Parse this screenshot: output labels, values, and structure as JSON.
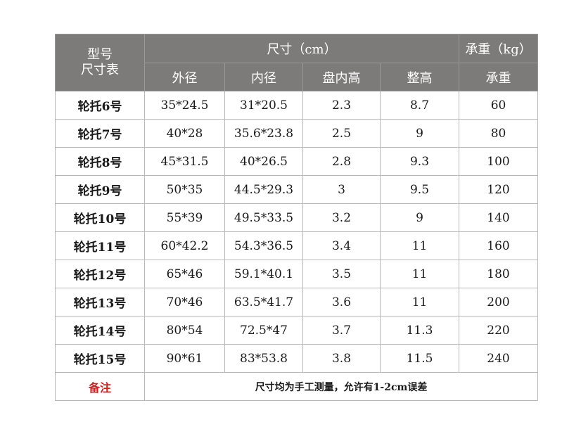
{
  "header": {
    "corner_line1": "型号",
    "corner_line2": "尺寸表",
    "size_group": "尺寸（cm）",
    "load_group": "承重（kg）",
    "columns": [
      "外径",
      "内径",
      "盘内高",
      "整高",
      "承重"
    ]
  },
  "rows": [
    {
      "model": "轮托6号",
      "outer": "35*24.5",
      "inner": "31*20.5",
      "tray_height": "2.3",
      "total_height": "8.7",
      "load": "60"
    },
    {
      "model": "轮托7号",
      "outer": "40*28",
      "inner": "35.6*23.8",
      "tray_height": "2.5",
      "total_height": "9",
      "load": "80"
    },
    {
      "model": "轮托8号",
      "outer": "45*31.5",
      "inner": "40*26.5",
      "tray_height": "2.8",
      "total_height": "9.3",
      "load": "100"
    },
    {
      "model": "轮托9号",
      "outer": "50*35",
      "inner": "44.5*29.3",
      "tray_height": "3",
      "total_height": "9.5",
      "load": "120"
    },
    {
      "model": "轮托10号",
      "outer": "55*39",
      "inner": "49.5*33.5",
      "tray_height": "3.2",
      "total_height": "9",
      "load": "140"
    },
    {
      "model": "轮托11号",
      "outer": "60*42.2",
      "inner": "54.3*36.5",
      "tray_height": "3.4",
      "total_height": "11",
      "load": "160"
    },
    {
      "model": "轮托12号",
      "outer": "65*46",
      "inner": "59.1*40.1",
      "tray_height": "3.5",
      "total_height": "11",
      "load": "180"
    },
    {
      "model": "轮托13号",
      "outer": "70*46",
      "inner": "63.5*41.7",
      "tray_height": "3.6",
      "total_height": "11",
      "load": "200"
    },
    {
      "model": "轮托14号",
      "outer": "80*54",
      "inner": "72.5*47",
      "tray_height": "3.7",
      "total_height": "11.3",
      "load": "220"
    },
    {
      "model": "轮托15号",
      "outer": "90*61",
      "inner": "83*53.8",
      "tray_height": "3.8",
      "total_height": "11.5",
      "load": "240"
    }
  ],
  "note": {
    "label": "备注",
    "text": "尺寸均为手工测量，允许有1-2cm误差"
  },
  "colors": {
    "header_bg": "#7d7a7a",
    "header_text": "#ffffff",
    "note_label": "#d42020",
    "border": "#b8b8b8"
  }
}
